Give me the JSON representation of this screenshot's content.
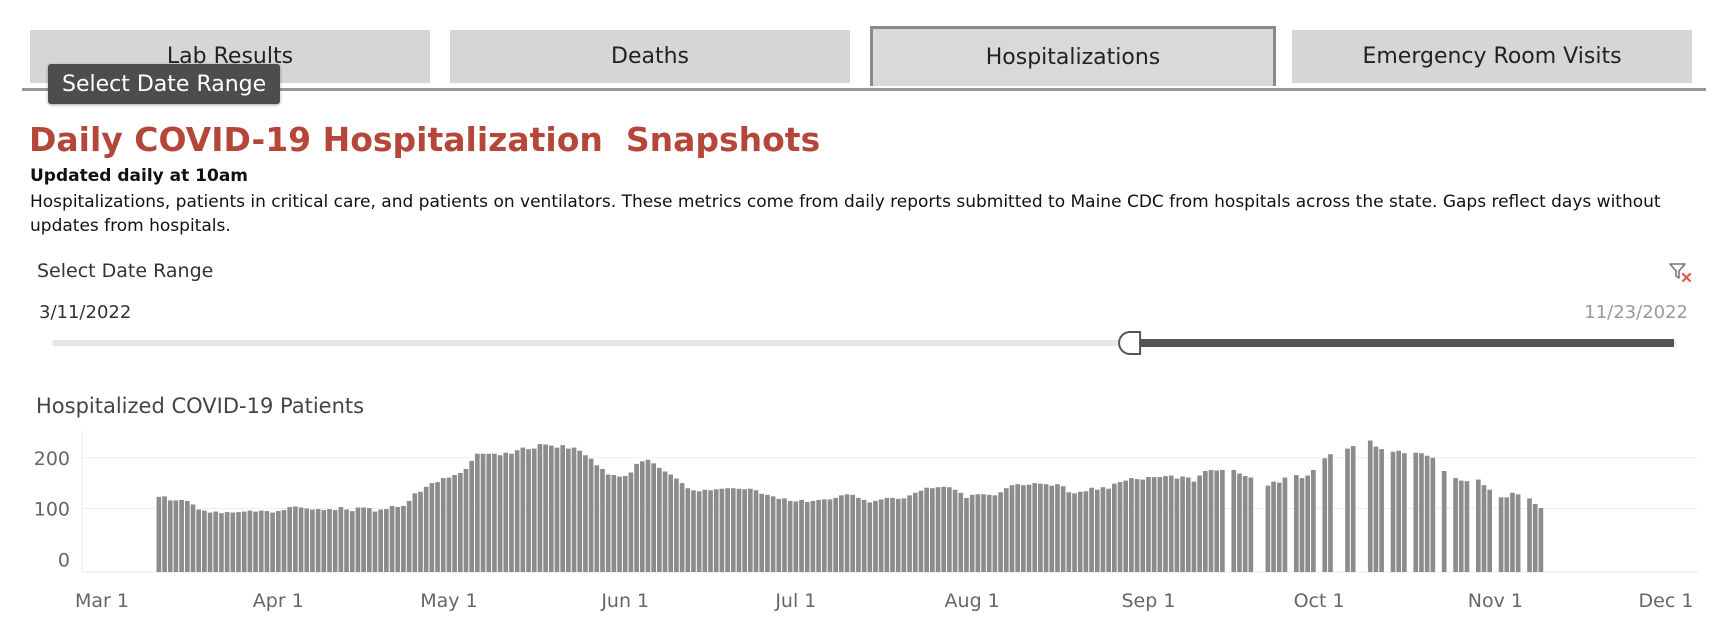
{
  "tabs": [
    {
      "label": "Lab Results",
      "active": false
    },
    {
      "label": "Deaths",
      "active": false
    },
    {
      "label": "Hospitalizations",
      "active": true
    },
    {
      "label": "Emergency Room Visits",
      "active": false
    }
  ],
  "tooltip": "Select Date Range",
  "header": {
    "title": "Daily COVID-19 Hospitalization  Snapshots",
    "updated": "Updated daily at 10am",
    "description": "Hospitalizations, patients in critical care, and patients on ventilators. These metrics come from daily reports submitted to Maine CDC from hospitals across the state. Gaps reflect days without updates from hospitals."
  },
  "filter": {
    "label": "Select Date Range",
    "start_date": "3/11/2022",
    "end_date": "11/23/2022",
    "selected_start_fraction": 0.67,
    "icon": "clear-filter-icon"
  },
  "colors": {
    "title": "#b5473a",
    "bar": "#8c8c8c",
    "tab_bg": "#d6d6d6",
    "slider_fill": "#555555",
    "slider_track": "#e6e6e6"
  },
  "chart_data": {
    "type": "bar",
    "title": "Hospitalized COVID-19 Patients",
    "xlabel": "",
    "ylabel": "",
    "x_start": "2022-03-11",
    "x_ticks": [
      "Mar 1",
      "Apr 1",
      "May 1",
      "Jun 1",
      "Jul 1",
      "Aug 1",
      "Sep 1",
      "Oct 1",
      "Nov 1",
      "Dec 1"
    ],
    "y_ticks": [
      0,
      100,
      200
    ],
    "ylim": [
      -25,
      235
    ],
    "grid": true,
    "values": [
      123,
      124,
      116,
      116,
      117,
      115,
      108,
      98,
      96,
      92,
      94,
      91,
      93,
      92,
      93,
      94,
      96,
      94,
      96,
      95,
      92,
      95,
      97,
      103,
      104,
      102,
      100,
      98,
      99,
      97,
      99,
      97,
      103,
      98,
      95,
      102,
      102,
      101,
      94,
      98,
      99,
      105,
      103,
      105,
      115,
      130,
      133,
      143,
      150,
      152,
      160,
      161,
      166,
      170,
      178,
      194,
      208,
      208,
      208,
      208,
      205,
      210,
      208,
      215,
      220,
      217,
      218,
      227,
      226,
      224,
      220,
      225,
      218,
      220,
      214,
      205,
      198,
      185,
      178,
      167,
      166,
      163,
      164,
      171,
      188,
      193,
      196,
      189,
      180,
      173,
      167,
      159,
      150,
      140,
      136,
      134,
      137,
      136,
      138,
      139,
      140,
      140,
      139,
      138,
      139,
      136,
      129,
      127,
      124,
      119,
      120,
      115,
      114,
      117,
      113,
      115,
      117,
      118,
      118,
      121,
      126,
      128,
      127,
      121,
      117,
      112,
      115,
      118,
      121,
      121,
      119,
      120,
      126,
      131,
      135,
      141,
      140,
      142,
      143,
      142,
      137,
      131,
      121,
      127,
      128,
      128,
      127,
      126,
      132,
      140,
      146,
      148,
      146,
      147,
      150,
      149,
      148,
      145,
      148,
      144,
      132,
      130,
      133,
      134,
      141,
      137,
      142,
      139,
      149,
      152,
      155,
      160,
      158,
      157,
      162,
      162,
      162,
      164,
      165,
      159,
      163,
      161,
      153,
      165,
      174,
      176,
      175,
      176,
      null,
      176,
      169,
      164,
      161,
      null,
      null,
      145,
      153,
      151,
      161,
      null,
      166,
      160,
      165,
      176,
      null,
      199,
      207,
      null,
      null,
      218,
      223,
      null,
      null,
      234,
      222,
      217,
      null,
      212,
      214,
      209,
      null,
      210,
      209,
      204,
      200,
      null,
      174,
      null,
      160,
      155,
      154,
      null,
      157,
      146,
      137,
      null,
      122,
      122,
      131,
      128,
      null,
      120,
      109,
      101
    ]
  }
}
